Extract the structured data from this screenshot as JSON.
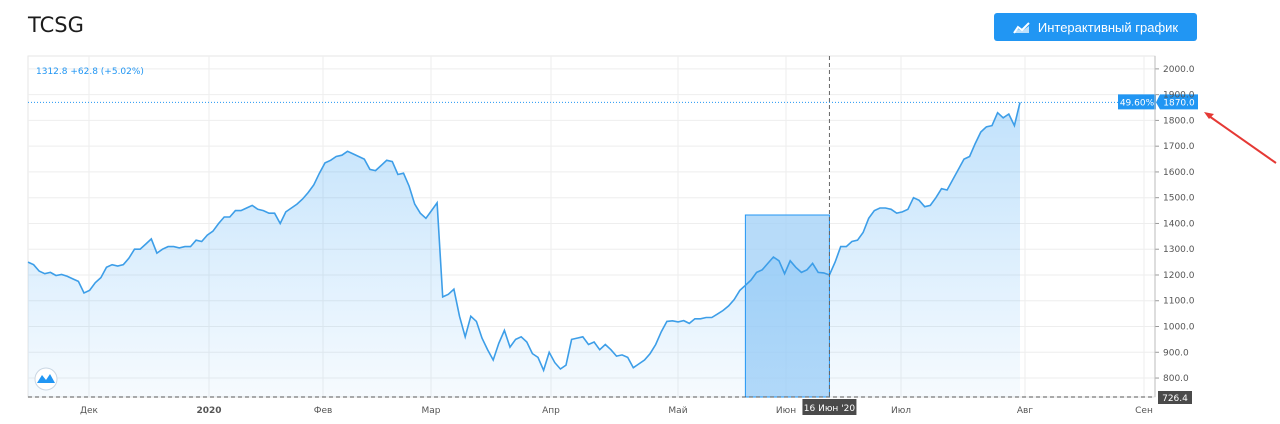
{
  "header": {
    "ticker": "TCSG",
    "interactive_button_label": "Интерактивный график",
    "interactive_icon": "area-chart-icon"
  },
  "legend_readout": "1312.8 +62.8 (+5.02%)",
  "price_tag": {
    "percent": "49.60%",
    "price": "1870.0"
  },
  "crosshair_date_label": "16 Июн '20",
  "last_low_label": "726.4",
  "logo_icon": "tradingview-cloud-icon",
  "colors": {
    "accent": "#2196f3",
    "line": "#3d9ee8",
    "arrow": "#e53935"
  },
  "chart_data": {
    "type": "area",
    "title": "",
    "x_ticks": [
      "Дек",
      "2020",
      "Фев",
      "Мар",
      "Апр",
      "Май",
      "Июн",
      "Июл",
      "Авг",
      "Сен"
    ],
    "y_ticks": [
      800.0,
      900.0,
      1000.0,
      1100.0,
      1200.0,
      1300.0,
      1400.0,
      1500.0,
      1600.0,
      1700.0,
      1800.0,
      1900.0,
      2000.0
    ],
    "ylim": [
      726.4,
      2050
    ],
    "grid": true,
    "series": [
      {
        "values": [
          1250,
          1240,
          1215,
          1205,
          1210,
          1198,
          1202,
          1195,
          1185,
          1175,
          1130,
          1140,
          1170,
          1190,
          1230,
          1240,
          1235,
          1240,
          1265,
          1300,
          1300,
          1320,
          1340,
          1285,
          1300,
          1310,
          1310,
          1305,
          1310,
          1310,
          1335,
          1330,
          1355,
          1370,
          1400,
          1425,
          1425,
          1450,
          1450,
          1460,
          1470,
          1455,
          1450,
          1440,
          1440,
          1400,
          1445,
          1460,
          1475,
          1495,
          1520,
          1550,
          1595,
          1635,
          1645,
          1660,
          1665,
          1680,
          1670,
          1660,
          1650,
          1610,
          1605,
          1625,
          1645,
          1640,
          1590,
          1595,
          1545,
          1475,
          1440,
          1420,
          1450,
          1480,
          1115,
          1125,
          1145,
          1040,
          960,
          1040,
          1020,
          955,
          910,
          870,
          935,
          985,
          920,
          950,
          960,
          940,
          895,
          880,
          830,
          900,
          860,
          835,
          850,
          950,
          955,
          960,
          930,
          940,
          910,
          930,
          910,
          885,
          890,
          880,
          840,
          855,
          870,
          895,
          930,
          980,
          1020,
          1022,
          1018,
          1023,
          1012,
          1030,
          1030,
          1035,
          1035,
          1048,
          1062,
          1080,
          1105,
          1140,
          1160,
          1180,
          1210,
          1220,
          1245,
          1270,
          1255,
          1205,
          1255,
          1230,
          1210,
          1220,
          1245,
          1210,
          1208,
          1200,
          1250,
          1310,
          1310,
          1330,
          1335,
          1365,
          1420,
          1450,
          1460,
          1460,
          1455,
          1440,
          1445,
          1455,
          1500,
          1490,
          1465,
          1470,
          1500,
          1535,
          1530,
          1570,
          1610,
          1650,
          1660,
          1710,
          1755,
          1775,
          1780,
          1830,
          1810,
          1825,
          1780,
          1870
        ]
      }
    ],
    "crosshair_index": 143,
    "highlight_range_index": [
      128,
      143
    ]
  }
}
